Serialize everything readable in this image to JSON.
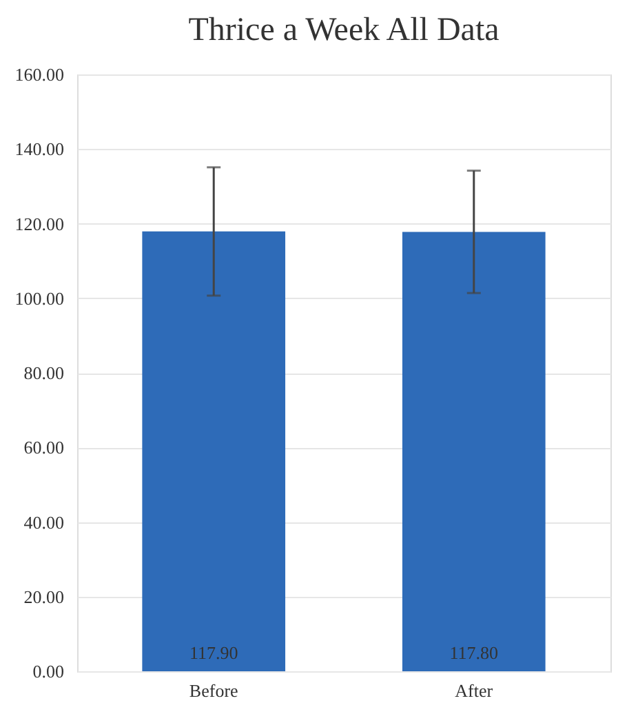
{
  "chart_data": {
    "type": "bar",
    "title": "Thrice a Week All Data",
    "categories": [
      "Before",
      "After"
    ],
    "values": [
      117.9,
      117.8
    ],
    "color": "#2e6bb8",
    "errors": [
      17.2,
      16.4
    ],
    "value_labels": [
      "117.90",
      "117.80"
    ],
    "ylim": [
      0,
      160
    ],
    "yticks": [
      {
        "value": 0,
        "label": "0.00"
      },
      {
        "value": 20,
        "label": "20.00"
      },
      {
        "value": 40,
        "label": "40.00"
      },
      {
        "value": 60,
        "label": "60.00"
      },
      {
        "value": 80,
        "label": "80.00"
      },
      {
        "value": 100,
        "label": "100.00"
      },
      {
        "value": 120,
        "label": "120.00"
      },
      {
        "value": 140,
        "label": "140.00"
      },
      {
        "value": 160,
        "label": "160.00"
      }
    ],
    "grid": "y"
  }
}
